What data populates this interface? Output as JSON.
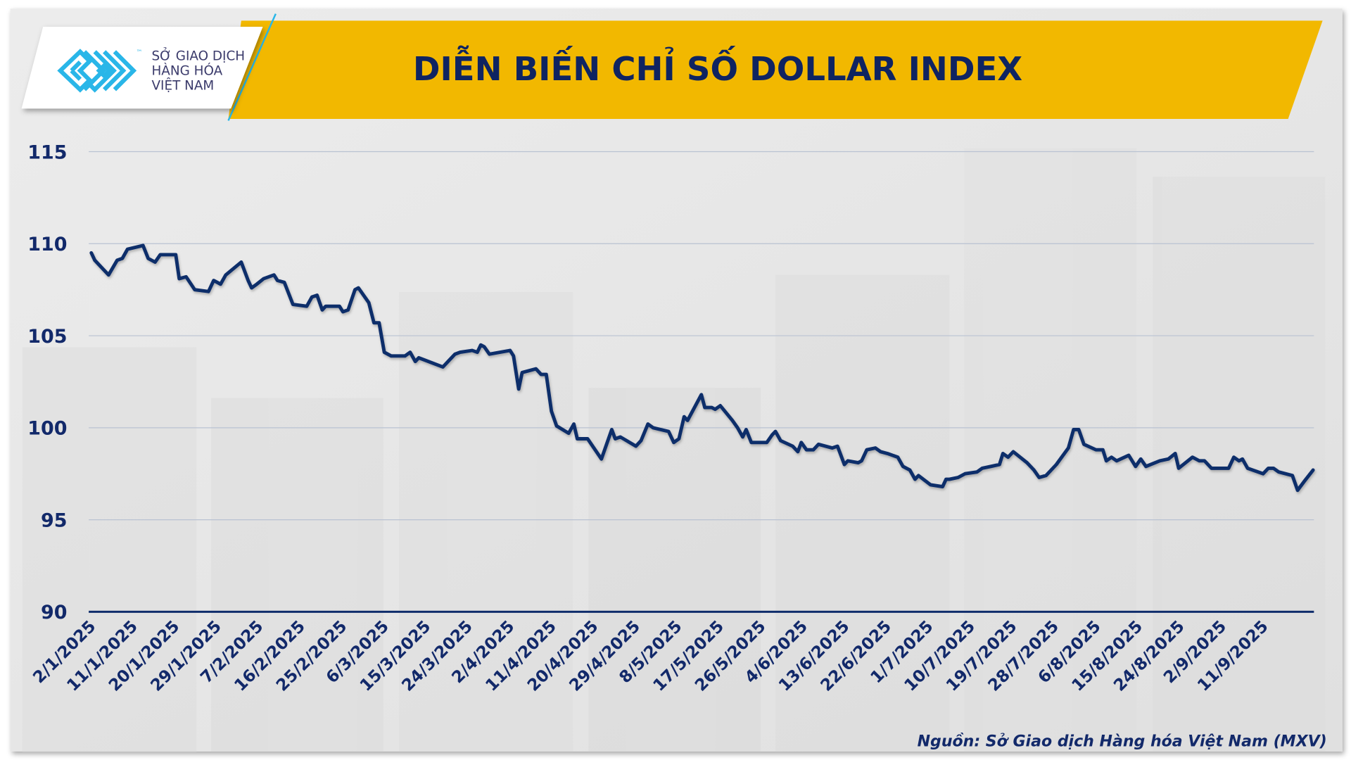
{
  "header": {
    "title": "DIỄN BIẾN CHỈ SỐ DOLLAR INDEX",
    "logo": {
      "line1": "SỞ GIAO DỊCH",
      "line2": "HÀNG HÓA",
      "line3": "VIỆT NAM",
      "tm": "™"
    }
  },
  "footer": {
    "source": "Nguồn: Sở Giao dịch Hàng hóa Việt Nam (MXV)"
  },
  "colors": {
    "line": "#0f2d6b",
    "banner": "#f2b800",
    "axis_text": "#12296a",
    "logo_blue": "#29b6e8",
    "background": "#e6e6e6"
  },
  "chart_data": {
    "type": "line",
    "title": "DIỄN BIẾN CHỈ SỐ DOLLAR INDEX",
    "xlabel": "",
    "ylabel": "",
    "ylim": [
      90,
      115
    ],
    "yticks": [
      90,
      95,
      100,
      105,
      110,
      115
    ],
    "grid": true,
    "legend": "none",
    "categories": [
      "2/1/2025",
      "11/1/2025",
      "20/1/2025",
      "29/1/2025",
      "7/2/2025",
      "16/2/2025",
      "25/2/2025",
      "6/3/2025",
      "15/3/2025",
      "24/3/2025",
      "2/4/2025",
      "11/4/2025",
      "20/4/2025",
      "29/4/2025",
      "8/5/2025",
      "17/5/2025",
      "26/5/2025",
      "4/6/2025",
      "13/6/2025",
      "22/6/2025",
      "1/7/2025",
      "10/7/2025",
      "19/7/2025",
      "28/7/2025",
      "6/8/2025",
      "15/8/2025",
      "24/8/2025",
      "2/9/2025",
      "11/9/2025"
    ],
    "series": [
      {
        "name": "Dollar Index",
        "points": [
          [
            106,
            109.5
          ],
          [
            110,
            109.1
          ],
          [
            126,
            108.3
          ],
          [
            136,
            109.1
          ],
          [
            142,
            109.2
          ],
          [
            148,
            109.7
          ],
          [
            166,
            109.9
          ],
          [
            172,
            109.2
          ],
          [
            180,
            109.0
          ],
          [
            186,
            109.4
          ],
          [
            204,
            109.4
          ],
          [
            208,
            108.1
          ],
          [
            216,
            108.2
          ],
          [
            226,
            107.5
          ],
          [
            242,
            107.4
          ],
          [
            248,
            108.0
          ],
          [
            256,
            107.8
          ],
          [
            262,
            108.3
          ],
          [
            280,
            109.0
          ],
          [
            288,
            108.0
          ],
          [
            292,
            107.6
          ],
          [
            298,
            107.8
          ],
          [
            306,
            108.1
          ],
          [
            318,
            108.3
          ],
          [
            322,
            108.0
          ],
          [
            330,
            107.9
          ],
          [
            340,
            106.7
          ],
          [
            356,
            106.6
          ],
          [
            362,
            107.1
          ],
          [
            368,
            107.2
          ],
          [
            374,
            106.4
          ],
          [
            378,
            106.6
          ],
          [
            394,
            106.6
          ],
          [
            398,
            106.3
          ],
          [
            404,
            106.4
          ],
          [
            412,
            107.5
          ],
          [
            416,
            107.6
          ],
          [
            428,
            106.8
          ],
          [
            434,
            105.7
          ],
          [
            440,
            105.7
          ],
          [
            446,
            104.1
          ],
          [
            454,
            103.9
          ],
          [
            470,
            103.9
          ],
          [
            476,
            104.1
          ],
          [
            482,
            103.6
          ],
          [
            486,
            103.8
          ],
          [
            514,
            103.3
          ],
          [
            520,
            103.6
          ],
          [
            528,
            104.0
          ],
          [
            534,
            104.1
          ],
          [
            548,
            104.2
          ],
          [
            554,
            104.1
          ],
          [
            558,
            104.5
          ],
          [
            562,
            104.4
          ],
          [
            568,
            104.0
          ],
          [
            592,
            104.2
          ],
          [
            596,
            103.9
          ],
          [
            602,
            102.1
          ],
          [
            606,
            103.0
          ],
          [
            622,
            103.2
          ],
          [
            628,
            102.9
          ],
          [
            634,
            102.9
          ],
          [
            640,
            100.9
          ],
          [
            646,
            100.1
          ],
          [
            660,
            99.7
          ],
          [
            666,
            100.2
          ],
          [
            670,
            99.4
          ],
          [
            682,
            99.4
          ],
          [
            698,
            98.3
          ],
          [
            710,
            99.9
          ],
          [
            714,
            99.4
          ],
          [
            720,
            99.5
          ],
          [
            738,
            99.0
          ],
          [
            744,
            99.3
          ],
          [
            752,
            100.2
          ],
          [
            758,
            100.0
          ],
          [
            776,
            99.8
          ],
          [
            782,
            99.2
          ],
          [
            788,
            99.4
          ],
          [
            794,
            100.6
          ],
          [
            798,
            100.4
          ],
          [
            814,
            101.8
          ],
          [
            818,
            101.1
          ],
          [
            826,
            101.1
          ],
          [
            830,
            101.0
          ],
          [
            836,
            101.2
          ],
          [
            850,
            100.4
          ],
          [
            856,
            100.0
          ],
          [
            862,
            99.5
          ],
          [
            866,
            99.9
          ],
          [
            872,
            99.2
          ],
          [
            890,
            99.2
          ],
          [
            896,
            99.6
          ],
          [
            900,
            99.8
          ],
          [
            906,
            99.3
          ],
          [
            920,
            99.0
          ],
          [
            926,
            98.7
          ],
          [
            930,
            99.2
          ],
          [
            936,
            98.8
          ],
          [
            944,
            98.8
          ],
          [
            950,
            99.1
          ],
          [
            966,
            98.9
          ],
          [
            972,
            99.0
          ],
          [
            980,
            98.0
          ],
          [
            984,
            98.2
          ],
          [
            996,
            98.1
          ],
          [
            1000,
            98.2
          ],
          [
            1006,
            98.8
          ],
          [
            1016,
            98.9
          ],
          [
            1022,
            98.7
          ],
          [
            1030,
            98.6
          ],
          [
            1042,
            98.4
          ],
          [
            1048,
            97.9
          ],
          [
            1056,
            97.7
          ],
          [
            1062,
            97.2
          ],
          [
            1066,
            97.4
          ],
          [
            1080,
            96.9
          ],
          [
            1094,
            96.8
          ],
          [
            1098,
            97.2
          ],
          [
            1102,
            97.2
          ],
          [
            1112,
            97.3
          ],
          [
            1120,
            97.5
          ],
          [
            1134,
            97.6
          ],
          [
            1140,
            97.8
          ],
          [
            1150,
            97.9
          ],
          [
            1160,
            98.0
          ],
          [
            1164,
            98.6
          ],
          [
            1170,
            98.4
          ],
          [
            1176,
            98.7
          ],
          [
            1192,
            98.1
          ],
          [
            1200,
            97.7
          ],
          [
            1206,
            97.3
          ],
          [
            1214,
            97.4
          ],
          [
            1226,
            98.0
          ],
          [
            1240,
            98.9
          ],
          [
            1246,
            99.9
          ],
          [
            1252,
            99.9
          ],
          [
            1258,
            99.1
          ],
          [
            1272,
            98.8
          ],
          [
            1280,
            98.8
          ],
          [
            1284,
            98.2
          ],
          [
            1290,
            98.4
          ],
          [
            1296,
            98.2
          ],
          [
            1310,
            98.5
          ],
          [
            1318,
            97.9
          ],
          [
            1324,
            98.3
          ],
          [
            1330,
            97.9
          ],
          [
            1346,
            98.2
          ],
          [
            1356,
            98.3
          ],
          [
            1364,
            98.6
          ],
          [
            1368,
            97.8
          ],
          [
            1384,
            98.4
          ],
          [
            1392,
            98.2
          ],
          [
            1398,
            98.2
          ],
          [
            1406,
            97.8
          ],
          [
            1426,
            97.8
          ],
          [
            1432,
            98.4
          ],
          [
            1438,
            98.2
          ],
          [
            1442,
            98.3
          ],
          [
            1448,
            97.8
          ],
          [
            1466,
            97.5
          ],
          [
            1472,
            97.8
          ],
          [
            1478,
            97.8
          ],
          [
            1484,
            97.6
          ],
          [
            1500,
            97.4
          ],
          [
            1506,
            96.6
          ],
          [
            1514,
            97.1
          ],
          [
            1524,
            97.7
          ]
        ]
      }
    ]
  }
}
